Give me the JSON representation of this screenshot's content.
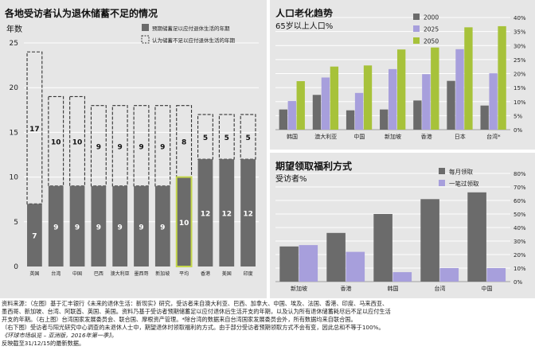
{
  "colors": {
    "panel_bg": "#e6e6e6",
    "dark_gray": "#6b6b6b",
    "purple": "#a79fdc",
    "green": "#a7c23a",
    "highlight_border": "#c6d84c"
  },
  "left": {
    "title": "各地受访者认为退休储蓄不足的情况",
    "subtitle": "年数",
    "legend": [
      "预期储蓄足以应付退休生活的年期",
      "认为储蓄不足以应付退休生活的年期"
    ]
  },
  "right_top": {
    "title": "人口老化趋势",
    "subtitle": "65岁以上人口%",
    "legend": [
      "2000",
      "2025",
      "2050"
    ]
  },
  "right_bottom": {
    "title": "期望领取福利方式",
    "subtitle": "受访者%",
    "legend": [
      "每月领取",
      "一笔过领取"
    ]
  },
  "footnote": {
    "lines": [
      "资料来源：（左图）基于汇丰银行《未来的退休生活：新现实》研究，受访者来自澳大利亚、巴西、加拿大、中国、埃及、法国、香港、印度、马来西亚、",
      "墨西哥、新加坡、台湾、阿联酋、英国、美国。资料乃基于受访者预期储蓄足以应付退休后生活开支的年期，以及认为所有退休储蓄耗尽后不足以应付生活",
      "开支的年期。（右上图）台湾国家发展委员会、联合国、摩根资产管理。*除台湾的数据来自台湾国家发展委员会外，所有数据均来自联合国。",
      "（右下图）受访者与阳光研究中心调查的未退休人士中，期望退休时领取福利的方式。由于部分受访者预期领取方式不会有变，因此总和不等于100%。"
    ],
    "source_italic": "《环球市场纵览 – 亚洲版，2016年第一季》。",
    "last_line": "反映截至31/12/15的最新数据。"
  },
  "chart_data": [
    {
      "type": "bar",
      "title": "各地受访者认为退休储蓄不足的情况",
      "ylabel": "年数",
      "stacked": true,
      "categories": [
        "英国",
        "台湾",
        "中国",
        "巴西",
        "澳大利亚",
        "墨西哥",
        "新加坡",
        "平均",
        "香港",
        "美国",
        "印度"
      ],
      "series": [
        {
          "name": "预期储蓄足以应付退休生活的年期",
          "values": [
            7,
            9,
            9,
            9,
            9,
            9,
            9,
            10,
            12,
            12,
            12
          ]
        },
        {
          "name": "认为储蓄不足以应付退休生活的年期",
          "values": [
            17,
            10,
            10,
            9,
            9,
            9,
            9,
            8,
            5,
            5,
            5
          ]
        }
      ],
      "highlight_category": "平均",
      "ylim": [
        0,
        25
      ],
      "yticks": [
        0,
        5,
        10,
        15,
        20,
        25
      ],
      "grid": true,
      "legend": "top-right"
    },
    {
      "type": "bar",
      "title": "人口老化趋势",
      "ylabel": "65岁以上人口%",
      "categories": [
        "韩国",
        "澳大利亚",
        "中国",
        "新加坡",
        "香港",
        "日本",
        "台湾*"
      ],
      "series": [
        {
          "name": "2000",
          "values": [
            7.2,
            12.4,
            6.9,
            7.2,
            10.4,
            17.4,
            8.6
          ]
        },
        {
          "name": "2025",
          "values": [
            10.2,
            18.6,
            13.1,
            21.6,
            19.8,
            28.7,
            20.1
          ]
        },
        {
          "name": "2050",
          "values": [
            17.3,
            22.5,
            22.9,
            28.6,
            29.3,
            36.5,
            36.9
          ]
        }
      ],
      "ylim": [
        0,
        40
      ],
      "yticks": [
        0,
        5,
        10,
        15,
        20,
        25,
        30,
        35,
        40
      ],
      "grid": true,
      "legend": "top-right"
    },
    {
      "type": "bar",
      "title": "期望领取福利方式",
      "ylabel": "受访者%",
      "categories": [
        "新加坡",
        "香港",
        "韩国",
        "台湾",
        "中国"
      ],
      "series": [
        {
          "name": "每月领取",
          "values": [
            26,
            36,
            50,
            61,
            66
          ]
        },
        {
          "name": "一笔过领取",
          "values": [
            27,
            22,
            7,
            10,
            10
          ]
        }
      ],
      "ylim": [
        0,
        80
      ],
      "yticks": [
        0,
        10,
        20,
        30,
        40,
        50,
        60,
        70,
        80
      ],
      "grid": true,
      "legend": "top-right"
    }
  ]
}
